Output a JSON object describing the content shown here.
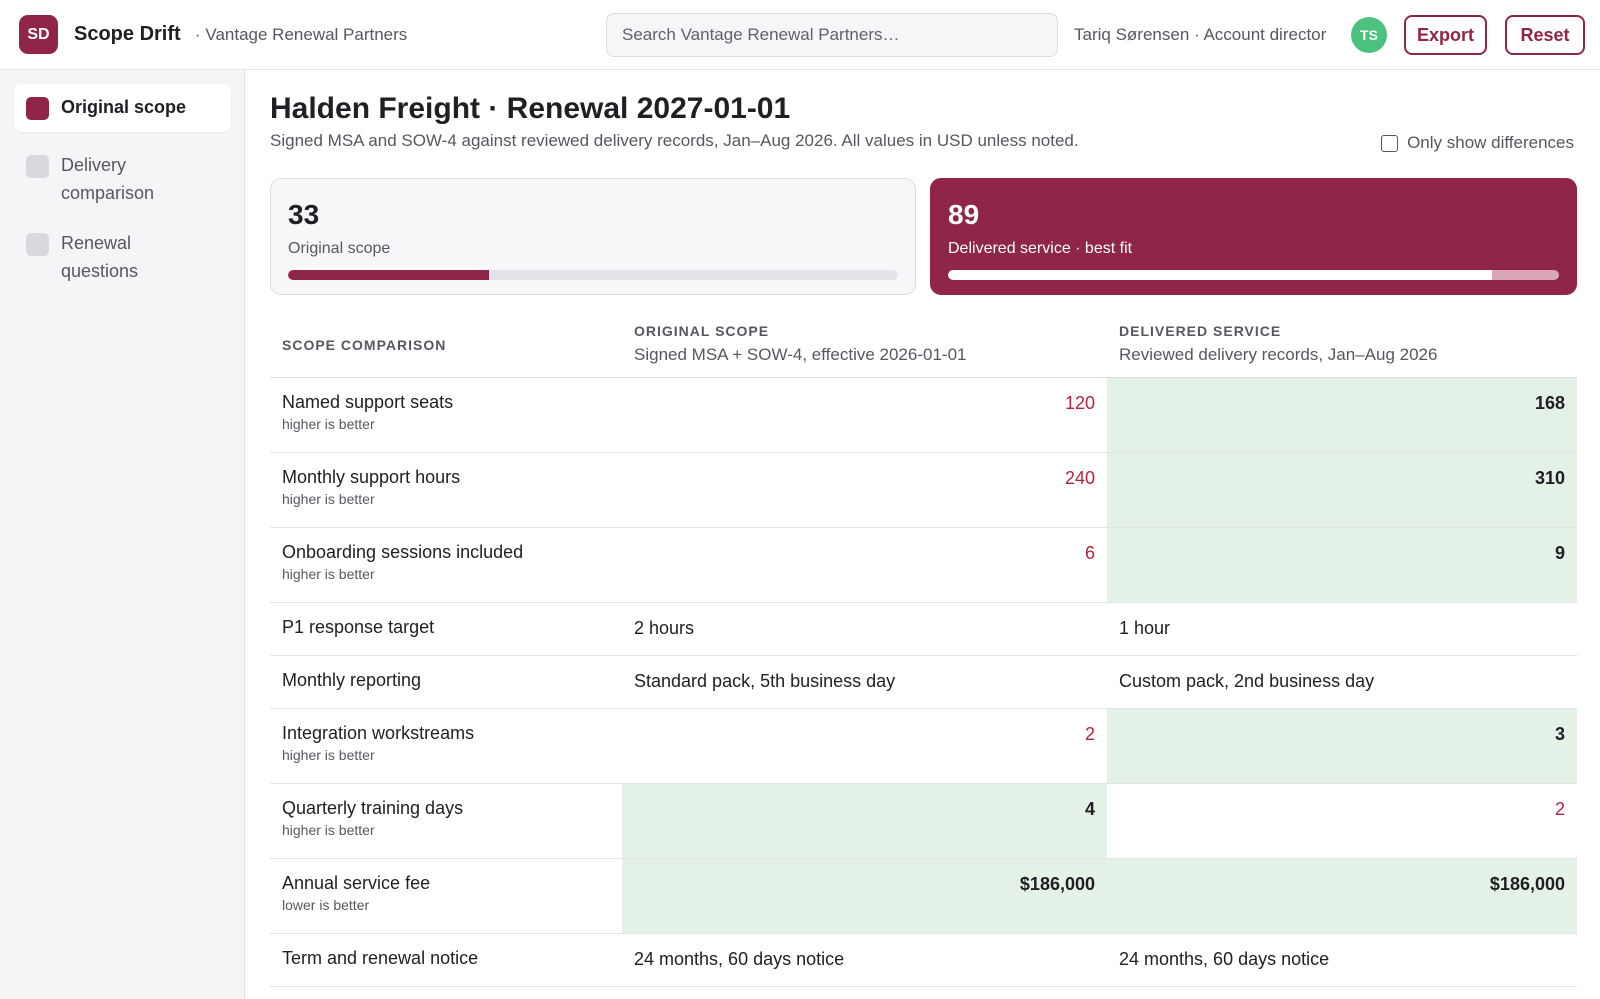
{
  "app": {
    "logo_initials": "SD",
    "name": "Scope Drift",
    "workspace": "· Vantage Renewal Partners"
  },
  "search": {
    "placeholder": "Search Vantage Renewal Partners…",
    "value": ""
  },
  "user": {
    "label": "Tariq Sørensen · Account director",
    "initials": "TS",
    "avatar_color": "#4dc17e"
  },
  "actions": {
    "export_label": "Export",
    "reset_label": "Reset"
  },
  "sidebar": {
    "items": [
      {
        "label": "Original scope",
        "active": true
      },
      {
        "label": "Delivery comparison",
        "active": false
      },
      {
        "label": "Renewal questions",
        "active": false
      }
    ]
  },
  "page": {
    "title": "Halden Freight · Renewal 2027-01-01",
    "subtitle": "Signed MSA and SOW-4 against reviewed delivery records, Jan–Aug 2026. All values in USD unless noted.",
    "only_differences_label": "Only show differences",
    "only_differences_checked": false
  },
  "summary": {
    "original": {
      "value": "33",
      "label": "Original scope",
      "progress": 0.33
    },
    "delivered": {
      "value": "89",
      "label": "Delivered service · best fit",
      "progress": 0.89
    }
  },
  "comparison": {
    "headers": {
      "label": "SCOPE COMPARISON",
      "original": "ORIGINAL SCOPE",
      "original_desc": "Signed MSA + SOW-4, effective 2026-01-01",
      "delivered": "DELIVERED SERVICE",
      "delivered_desc": "Reviewed delivery records, Jan–Aug 2026"
    },
    "rows": [
      {
        "label": "Named support seats",
        "hint": "higher is better",
        "original": "120",
        "delivered": "168"
      },
      {
        "label": "Monthly support hours",
        "hint": "higher is better",
        "original": "240",
        "delivered": "310"
      },
      {
        "label": "Onboarding sessions included",
        "hint": "higher is better",
        "original": "6",
        "delivered": "9"
      },
      {
        "label": "P1 response target",
        "hint": "",
        "original": "2 hours",
        "delivered": "1 hour"
      },
      {
        "label": "Monthly reporting",
        "hint": "",
        "original": "Standard pack, 5th business day",
        "delivered": "Custom pack, 2nd business day"
      },
      {
        "label": "Integration workstreams",
        "hint": "higher is better",
        "original": "2",
        "delivered": "3"
      },
      {
        "label": "Quarterly training days",
        "hint": "higher is better",
        "original": "4",
        "delivered": "2"
      },
      {
        "label": "Annual service fee",
        "hint": "lower is better",
        "original": "$186,000",
        "delivered": "$186,000"
      },
      {
        "label": "Term and renewal notice",
        "hint": "",
        "original": "24 months, 60 days notice",
        "delivered": "24 months, 60 days notice"
      }
    ]
  },
  "colors": {
    "brand": "#8f2548",
    "better_highlight": "#e4f1e7",
    "worse_text": "#b3263a"
  }
}
